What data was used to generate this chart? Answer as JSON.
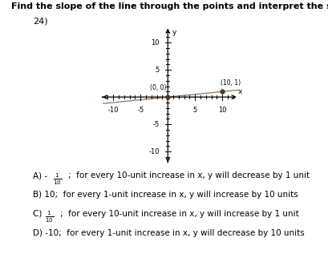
{
  "title": "Find the slope of the line through the points and interpret the slope.",
  "problem_number": "24)",
  "points": [
    [
      0,
      0
    ],
    [
      10,
      1
    ]
  ],
  "point_labels": [
    "(0, 0)",
    "(10, 1)"
  ],
  "xlim": [
    -12,
    13
  ],
  "ylim": [
    -12,
    13
  ],
  "xticks": [
    -10,
    -5,
    5,
    10
  ],
  "yticks": [
    -10,
    -5,
    5,
    10
  ],
  "xlabel": "x",
  "ylabel": "y",
  "line_color": "#8B7355",
  "point_color": "#4a3728",
  "answer_A_prefix": "A) - ",
  "answer_A_frac": "$\\frac{1}{10}$",
  "answer_A_suffix": ";  for every 10-unit increase in x, y will decrease by 1 unit",
  "answer_B": "B) 10;  for every 1-unit increase in x, y will increase by 10 units",
  "answer_C_prefix": "C) ",
  "answer_C_frac": "$\\frac{1}{10}$",
  "answer_C_suffix": ";  for every 10-unit increase in x, y will increase by 1 unit",
  "answer_D": "D) -10;  for every 1-unit increase in x, y will decrease by 10 units",
  "background_color": "#ffffff",
  "text_color": "#000000",
  "font_size": 7.5,
  "title_fontsize": 8.0
}
